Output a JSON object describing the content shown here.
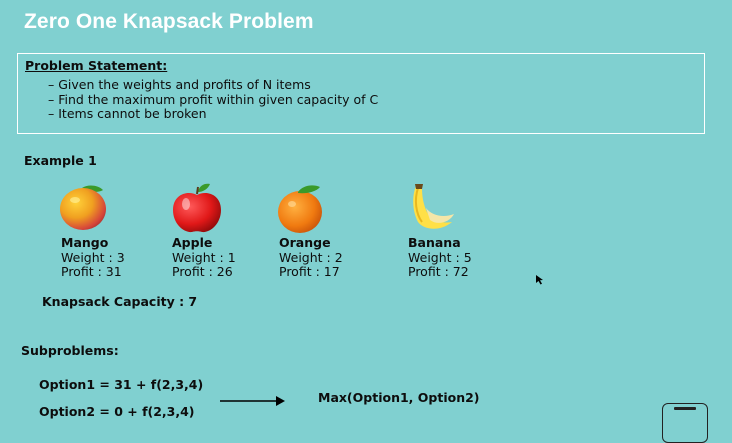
{
  "title": "Zero One Knapsack Problem",
  "problem": {
    "label": "Problem Statement:",
    "items": [
      "Given the weights and profits of N items",
      "Find the maximum profit within given capacity of C",
      "Items cannot be broken"
    ]
  },
  "example": {
    "label": "Example 1",
    "fruits": [
      {
        "name": "Mango",
        "weight": "Weight : 3",
        "profit": "Profit : 31",
        "icon": "mango-icon"
      },
      {
        "name": "Apple",
        "weight": "Weight : 1",
        "profit": "Profit : 26",
        "icon": "apple-icon"
      },
      {
        "name": "Orange",
        "weight": "Weight : 2",
        "profit": "Profit : 17",
        "icon": "orange-icon"
      },
      {
        "name": "Banana",
        "weight": "Weight : 5",
        "profit": "Profit : 72",
        "icon": "banana-icon"
      }
    ],
    "capacity": "Knapsack Capacity : 7"
  },
  "subproblems": {
    "label": "Subproblems:",
    "option1": "Option1 = 31 + f(2,3,4)",
    "option2": "Option2 = 0 + f(2,3,4)",
    "result": "Max(Option1, Option2)"
  }
}
